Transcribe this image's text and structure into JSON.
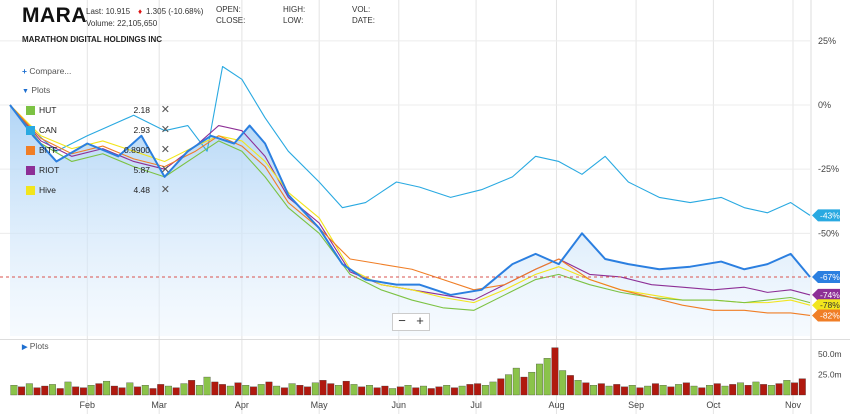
{
  "header": {
    "ticker": "MARA",
    "last": "Last: 10.915",
    "change": "1.305 (-10.68%)",
    "volume": "Volume: 22,105,650",
    "company": "MARATHON DIGITAL HOLDINGS INC",
    "open_label": "OPEN:",
    "close_label": "CLOSE:",
    "high_label": "HIGH:",
    "low_label": "LOW:",
    "vol_label": "VOL:",
    "date_label": "DATE:"
  },
  "sidebar": {
    "compare": "Compare...",
    "plots": "Plots",
    "volume_plots": "Plots"
  },
  "legend": [
    {
      "name": "HUT",
      "value": "2.18",
      "color": "#7cc243"
    },
    {
      "name": "CAN",
      "value": "2.93",
      "color": "#29a9e1"
    },
    {
      "name": "BITF",
      "value": "0.8900",
      "color": "#f07e26"
    },
    {
      "name": "RIOT",
      "value": "5.87",
      "color": "#8d2f96"
    },
    {
      "name": "Hive",
      "value": "4.48",
      "color": "#f2e51d"
    }
  ],
  "zoom": {
    "minus": "−",
    "plus": "+"
  },
  "colors": {
    "mara_line": "#2b7fe0",
    "mara_fill_top": "#a8d0f5",
    "ref_line": "#d9534f",
    "vol_up": "#8bc34a",
    "vol_down": "#b0190f"
  },
  "chart_data": {
    "type": "line",
    "y_unit": "percent change",
    "ylim": [
      -90,
      30
    ],
    "y_ticks": [
      25,
      0,
      -25,
      -50
    ],
    "y_tick_labels": [
      "25%",
      "0%",
      "-25%",
      "-50%"
    ],
    "x_range": [
      0,
      10.35
    ],
    "x_ticks": [
      {
        "label": "Feb",
        "x": 1
      },
      {
        "label": "Mar",
        "x": 1.93
      },
      {
        "label": "Apr",
        "x": 3
      },
      {
        "label": "May",
        "x": 4
      },
      {
        "label": "Jun",
        "x": 5.03
      },
      {
        "label": "Jul",
        "x": 6.03
      },
      {
        "label": "Aug",
        "x": 7.07
      },
      {
        "label": "Sep",
        "x": 8.1
      },
      {
        "label": "Oct",
        "x": 9.1
      },
      {
        "label": "Nov",
        "x": 10.13
      }
    ],
    "reference_line": -67,
    "series": [
      {
        "name": "MARA",
        "color": "#2b7fe0",
        "end_label": "-67%",
        "x": [
          0,
          0.3,
          0.6,
          1,
          1.4,
          1.7,
          2,
          2.3,
          2.6,
          2.9,
          3.1,
          3.3,
          3.6,
          4,
          4.3,
          4.6,
          5,
          5.3,
          5.7,
          6.1,
          6.5,
          6.8,
          7.1,
          7.4,
          7.7,
          8,
          8.4,
          8.8,
          9.2,
          9.5,
          9.8,
          10.1,
          10.35
        ],
        "values": [
          0,
          -12,
          -22,
          -15,
          -20,
          -12,
          -28,
          -18,
          -12,
          -15,
          -8,
          -15,
          -35,
          -48,
          -62,
          -68,
          -70,
          -70,
          -74,
          -72,
          -62,
          -58,
          -62,
          -50,
          -60,
          -62,
          -64,
          -63,
          -61,
          -64,
          -62,
          -58,
          -67
        ]
      },
      {
        "name": "CAN",
        "color": "#29a9e1",
        "end_label": "-43%",
        "x": [
          0,
          0.3,
          0.6,
          1,
          1.3,
          1.6,
          2,
          2.3,
          2.55,
          2.75,
          3,
          3.3,
          3.6,
          4,
          4.3,
          4.6,
          5,
          5.3,
          5.7,
          6.1,
          6.5,
          6.8,
          7.1,
          7.4,
          7.7,
          8,
          8.4,
          8.8,
          9.2,
          9.5,
          9.8,
          10.1,
          10.35
        ],
        "values": [
          0,
          -10,
          -18,
          -12,
          -8,
          -4,
          -10,
          -8,
          -18,
          15,
          10,
          -5,
          -18,
          -30,
          -40,
          -38,
          -30,
          -32,
          -36,
          -33,
          -28,
          -20,
          -22,
          -27,
          -20,
          -30,
          -36,
          -38,
          -36,
          -40,
          -42,
          -38,
          -43
        ]
      },
      {
        "name": "RIOT",
        "color": "#8d2f96",
        "end_label": "-74%",
        "x": [
          0,
          0.4,
          0.8,
          1.2,
          1.6,
          2,
          2.4,
          2.7,
          3,
          3.3,
          3.6,
          4,
          4.4,
          4.8,
          5.2,
          5.6,
          6,
          6.4,
          6.8,
          7.1,
          7.5,
          7.9,
          8.3,
          8.7,
          9.1,
          9.5,
          9.8,
          10.1,
          10.35
        ],
        "values": [
          0,
          -14,
          -20,
          -17,
          -22,
          -25,
          -16,
          -8,
          -10,
          -20,
          -36,
          -46,
          -65,
          -70,
          -72,
          -74,
          -76,
          -70,
          -64,
          -60,
          -66,
          -67,
          -70,
          -71,
          -72,
          -71,
          -73,
          -72,
          -74
        ]
      },
      {
        "name": "Hive",
        "color": "#f2e51d",
        "end_label": "-78%",
        "x": [
          0,
          0.4,
          0.8,
          1.2,
          1.6,
          2,
          2.4,
          2.7,
          3,
          3.3,
          3.6,
          4,
          4.4,
          4.8,
          5.2,
          5.6,
          6,
          6.4,
          6.8,
          7.1,
          7.5,
          7.9,
          8.3,
          8.7,
          9.1,
          9.5,
          9.8,
          10.1,
          10.35
        ],
        "values": [
          0,
          -12,
          -17,
          -14,
          -18,
          -22,
          -16,
          -12,
          -14,
          -22,
          -34,
          -44,
          -64,
          -70,
          -72,
          -75,
          -77,
          -72,
          -66,
          -63,
          -68,
          -72,
          -74,
          -76,
          -76,
          -77,
          -77,
          -76,
          -78
        ]
      },
      {
        "name": "HUT",
        "color": "#7cc243",
        "end_label": "",
        "x": [
          0,
          0.4,
          0.8,
          1.2,
          1.6,
          2,
          2.4,
          2.7,
          3,
          3.3,
          3.6,
          4,
          4.4,
          4.8,
          5.2,
          5.6,
          6,
          6.4,
          6.8,
          7.1,
          7.5,
          7.9,
          8.3,
          8.7,
          9.1,
          9.5,
          9.8,
          10.1,
          10.35
        ],
        "values": [
          0,
          -15,
          -22,
          -19,
          -24,
          -28,
          -20,
          -14,
          -18,
          -28,
          -40,
          -50,
          -66,
          -72,
          -76,
          -79,
          -80,
          -74,
          -68,
          -66,
          -70,
          -73,
          -75,
          -76,
          -76,
          -77,
          -76,
          -75,
          -77
        ]
      },
      {
        "name": "BITF",
        "color": "#f07e26",
        "end_label": "-82%",
        "x": [
          0,
          0.4,
          0.8,
          1.2,
          1.6,
          2,
          2.4,
          2.7,
          3,
          3.3,
          3.6,
          4,
          4.4,
          4.8,
          5.2,
          5.6,
          6,
          6.4,
          6.8,
          7.1,
          7.5,
          7.9,
          8.3,
          8.7,
          9.1,
          9.5,
          9.8,
          10.1,
          10.35
        ],
        "values": [
          0,
          -13,
          -19,
          -16,
          -21,
          -24,
          -18,
          -12,
          -16,
          -24,
          -38,
          -48,
          -60,
          -62,
          -64,
          -68,
          -72,
          -70,
          -64,
          -60,
          -68,
          -72,
          -75,
          -78,
          -80,
          -80,
          -81,
          -81,
          -82
        ]
      }
    ],
    "volume": {
      "tick_labels": [
        "50.0m",
        "25.0m"
      ],
      "tick_values": [
        50,
        25
      ],
      "ylim": [
        0,
        60
      ],
      "bars": [
        {
          "x": 0.05,
          "v": 12,
          "d": 0
        },
        {
          "x": 0.15,
          "v": 10,
          "d": 1
        },
        {
          "x": 0.25,
          "v": 14,
          "d": 0
        },
        {
          "x": 0.35,
          "v": 9,
          "d": 1
        },
        {
          "x": 0.45,
          "v": 11,
          "d": 1
        },
        {
          "x": 0.55,
          "v": 13,
          "d": 0
        },
        {
          "x": 0.65,
          "v": 8,
          "d": 1
        },
        {
          "x": 0.75,
          "v": 16,
          "d": 0
        },
        {
          "x": 0.85,
          "v": 10,
          "d": 1
        },
        {
          "x": 0.95,
          "v": 9,
          "d": 1
        },
        {
          "x": 1.05,
          "v": 12,
          "d": 0
        },
        {
          "x": 1.15,
          "v": 14,
          "d": 1
        },
        {
          "x": 1.25,
          "v": 17,
          "d": 0
        },
        {
          "x": 1.35,
          "v": 11,
          "d": 1
        },
        {
          "x": 1.45,
          "v": 9,
          "d": 1
        },
        {
          "x": 1.55,
          "v": 15,
          "d": 0
        },
        {
          "x": 1.65,
          "v": 10,
          "d": 1
        },
        {
          "x": 1.75,
          "v": 12,
          "d": 0
        },
        {
          "x": 1.85,
          "v": 8,
          "d": 1
        },
        {
          "x": 1.95,
          "v": 13,
          "d": 1
        },
        {
          "x": 2.05,
          "v": 11,
          "d": 0
        },
        {
          "x": 2.15,
          "v": 9,
          "d": 1
        },
        {
          "x": 2.25,
          "v": 14,
          "d": 0
        },
        {
          "x": 2.35,
          "v": 18,
          "d": 1
        },
        {
          "x": 2.45,
          "v": 12,
          "d": 0
        },
        {
          "x": 2.55,
          "v": 22,
          "d": 0
        },
        {
          "x": 2.65,
          "v": 16,
          "d": 1
        },
        {
          "x": 2.75,
          "v": 13,
          "d": 1
        },
        {
          "x": 2.85,
          "v": 11,
          "d": 0
        },
        {
          "x": 2.95,
          "v": 15,
          "d": 1
        },
        {
          "x": 3.05,
          "v": 12,
          "d": 0
        },
        {
          "x": 3.15,
          "v": 10,
          "d": 1
        },
        {
          "x": 3.25,
          "v": 13,
          "d": 0
        },
        {
          "x": 3.35,
          "v": 16,
          "d": 1
        },
        {
          "x": 3.45,
          "v": 11,
          "d": 0
        },
        {
          "x": 3.55,
          "v": 9,
          "d": 1
        },
        {
          "x": 3.65,
          "v": 14,
          "d": 0
        },
        {
          "x": 3.75,
          "v": 12,
          "d": 1
        },
        {
          "x": 3.85,
          "v": 10,
          "d": 1
        },
        {
          "x": 3.95,
          "v": 15,
          "d": 0
        },
        {
          "x": 4.05,
          "v": 18,
          "d": 1
        },
        {
          "x": 4.15,
          "v": 14,
          "d": 1
        },
        {
          "x": 4.25,
          "v": 12,
          "d": 0
        },
        {
          "x": 4.35,
          "v": 17,
          "d": 1
        },
        {
          "x": 4.45,
          "v": 13,
          "d": 0
        },
        {
          "x": 4.55,
          "v": 10,
          "d": 1
        },
        {
          "x": 4.65,
          "v": 12,
          "d": 0
        },
        {
          "x": 4.75,
          "v": 9,
          "d": 1
        },
        {
          "x": 4.85,
          "v": 11,
          "d": 1
        },
        {
          "x": 4.95,
          "v": 8,
          "d": 0
        },
        {
          "x": 5.05,
          "v": 10,
          "d": 1
        },
        {
          "x": 5.15,
          "v": 12,
          "d": 0
        },
        {
          "x": 5.25,
          "v": 9,
          "d": 1
        },
        {
          "x": 5.35,
          "v": 11,
          "d": 0
        },
        {
          "x": 5.45,
          "v": 8,
          "d": 1
        },
        {
          "x": 5.55,
          "v": 10,
          "d": 1
        },
        {
          "x": 5.65,
          "v": 12,
          "d": 0
        },
        {
          "x": 5.75,
          "v": 9,
          "d": 1
        },
        {
          "x": 5.85,
          "v": 11,
          "d": 0
        },
        {
          "x": 5.95,
          "v": 13,
          "d": 1
        },
        {
          "x": 6.05,
          "v": 14,
          "d": 1
        },
        {
          "x": 6.15,
          "v": 12,
          "d": 0
        },
        {
          "x": 6.25,
          "v": 16,
          "d": 0
        },
        {
          "x": 6.35,
          "v": 20,
          "d": 1
        },
        {
          "x": 6.45,
          "v": 25,
          "d": 0
        },
        {
          "x": 6.55,
          "v": 33,
          "d": 0
        },
        {
          "x": 6.65,
          "v": 22,
          "d": 1
        },
        {
          "x": 6.75,
          "v": 28,
          "d": 0
        },
        {
          "x": 6.85,
          "v": 38,
          "d": 0
        },
        {
          "x": 6.95,
          "v": 45,
          "d": 0
        },
        {
          "x": 7.05,
          "v": 58,
          "d": 1
        },
        {
          "x": 7.15,
          "v": 30,
          "d": 0
        },
        {
          "x": 7.25,
          "v": 24,
          "d": 1
        },
        {
          "x": 7.35,
          "v": 18,
          "d": 0
        },
        {
          "x": 7.45,
          "v": 15,
          "d": 1
        },
        {
          "x": 7.55,
          "v": 12,
          "d": 0
        },
        {
          "x": 7.65,
          "v": 14,
          "d": 1
        },
        {
          "x": 7.75,
          "v": 11,
          "d": 0
        },
        {
          "x": 7.85,
          "v": 13,
          "d": 1
        },
        {
          "x": 7.95,
          "v": 10,
          "d": 1
        },
        {
          "x": 8.05,
          "v": 12,
          "d": 0
        },
        {
          "x": 8.15,
          "v": 9,
          "d": 1
        },
        {
          "x": 8.25,
          "v": 11,
          "d": 0
        },
        {
          "x": 8.35,
          "v": 14,
          "d": 1
        },
        {
          "x": 8.45,
          "v": 12,
          "d": 0
        },
        {
          "x": 8.55,
          "v": 10,
          "d": 1
        },
        {
          "x": 8.65,
          "v": 13,
          "d": 0
        },
        {
          "x": 8.75,
          "v": 15,
          "d": 1
        },
        {
          "x": 8.85,
          "v": 11,
          "d": 0
        },
        {
          "x": 8.95,
          "v": 9,
          "d": 1
        },
        {
          "x": 9.05,
          "v": 12,
          "d": 0
        },
        {
          "x": 9.15,
          "v": 14,
          "d": 1
        },
        {
          "x": 9.25,
          "v": 11,
          "d": 0
        },
        {
          "x": 9.35,
          "v": 13,
          "d": 1
        },
        {
          "x": 9.45,
          "v": 15,
          "d": 0
        },
        {
          "x": 9.55,
          "v": 12,
          "d": 1
        },
        {
          "x": 9.65,
          "v": 16,
          "d": 0
        },
        {
          "x": 9.75,
          "v": 13,
          "d": 1
        },
        {
          "x": 9.85,
          "v": 12,
          "d": 0
        },
        {
          "x": 9.95,
          "v": 14,
          "d": 1
        },
        {
          "x": 10.05,
          "v": 18,
          "d": 0
        },
        {
          "x": 10.15,
          "v": 15,
          "d": 1
        },
        {
          "x": 10.25,
          "v": 20,
          "d": 1
        }
      ]
    }
  }
}
